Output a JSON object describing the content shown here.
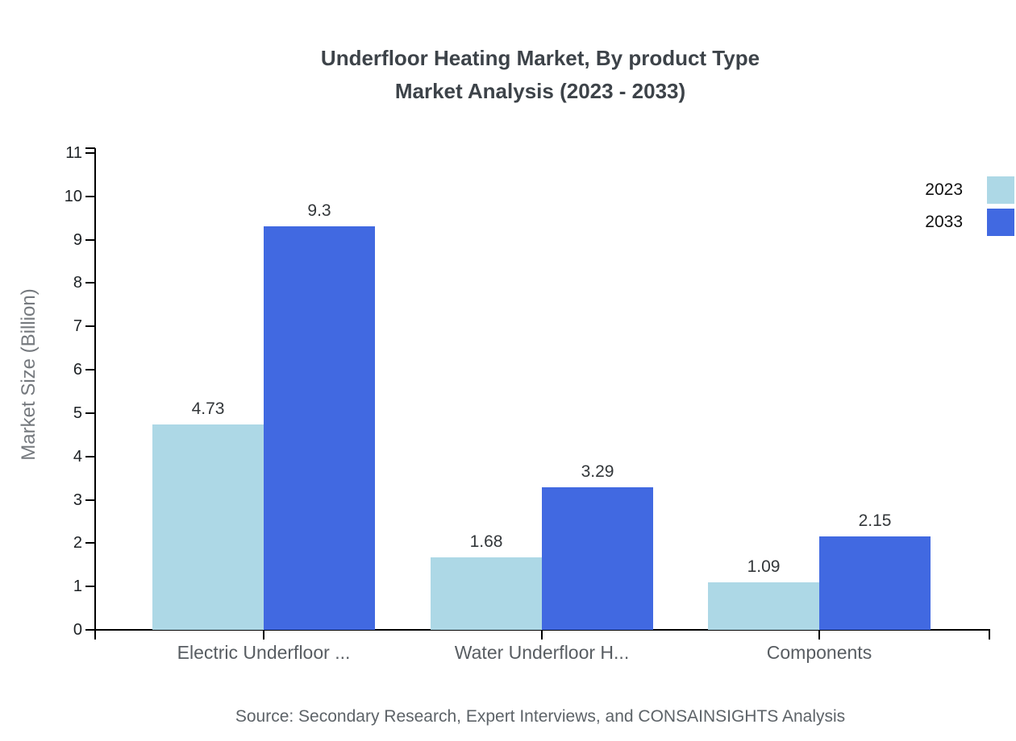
{
  "page": {
    "background": "#ffffff"
  },
  "chart_data": {
    "type": "bar",
    "title_lines": [
      "Underfloor Heating Market, By product Type",
      "Market Analysis (2023 - 2033)"
    ],
    "ylabel": "Market Size (Billion)",
    "categories": [
      "Electric Underfloor ...",
      "Water Underfloor H...",
      "Components"
    ],
    "series": [
      {
        "name": "2023",
        "color": "#ADD8E6",
        "values": [
          4.73,
          1.68,
          1.09
        ]
      },
      {
        "name": "2033",
        "color": "#4169E1",
        "values": [
          9.3,
          3.29,
          2.15
        ]
      }
    ],
    "ylim": [
      0,
      11
    ],
    "ytick_step": 1,
    "grid": false,
    "legend_position": "right",
    "legend_labels": [
      "2023",
      "2033"
    ],
    "source": "Source: Secondary Research, Expert Interviews, and CONSAINSIGHTS Analysis",
    "colors": {
      "axis": "#000000",
      "title": "#3d4349",
      "tick_label": "#1d2124",
      "category_label": "#585d62",
      "value_label": "#33373a",
      "axis_title": "#75797e",
      "source": "#5d6368",
      "legend_label": "#111111"
    }
  }
}
